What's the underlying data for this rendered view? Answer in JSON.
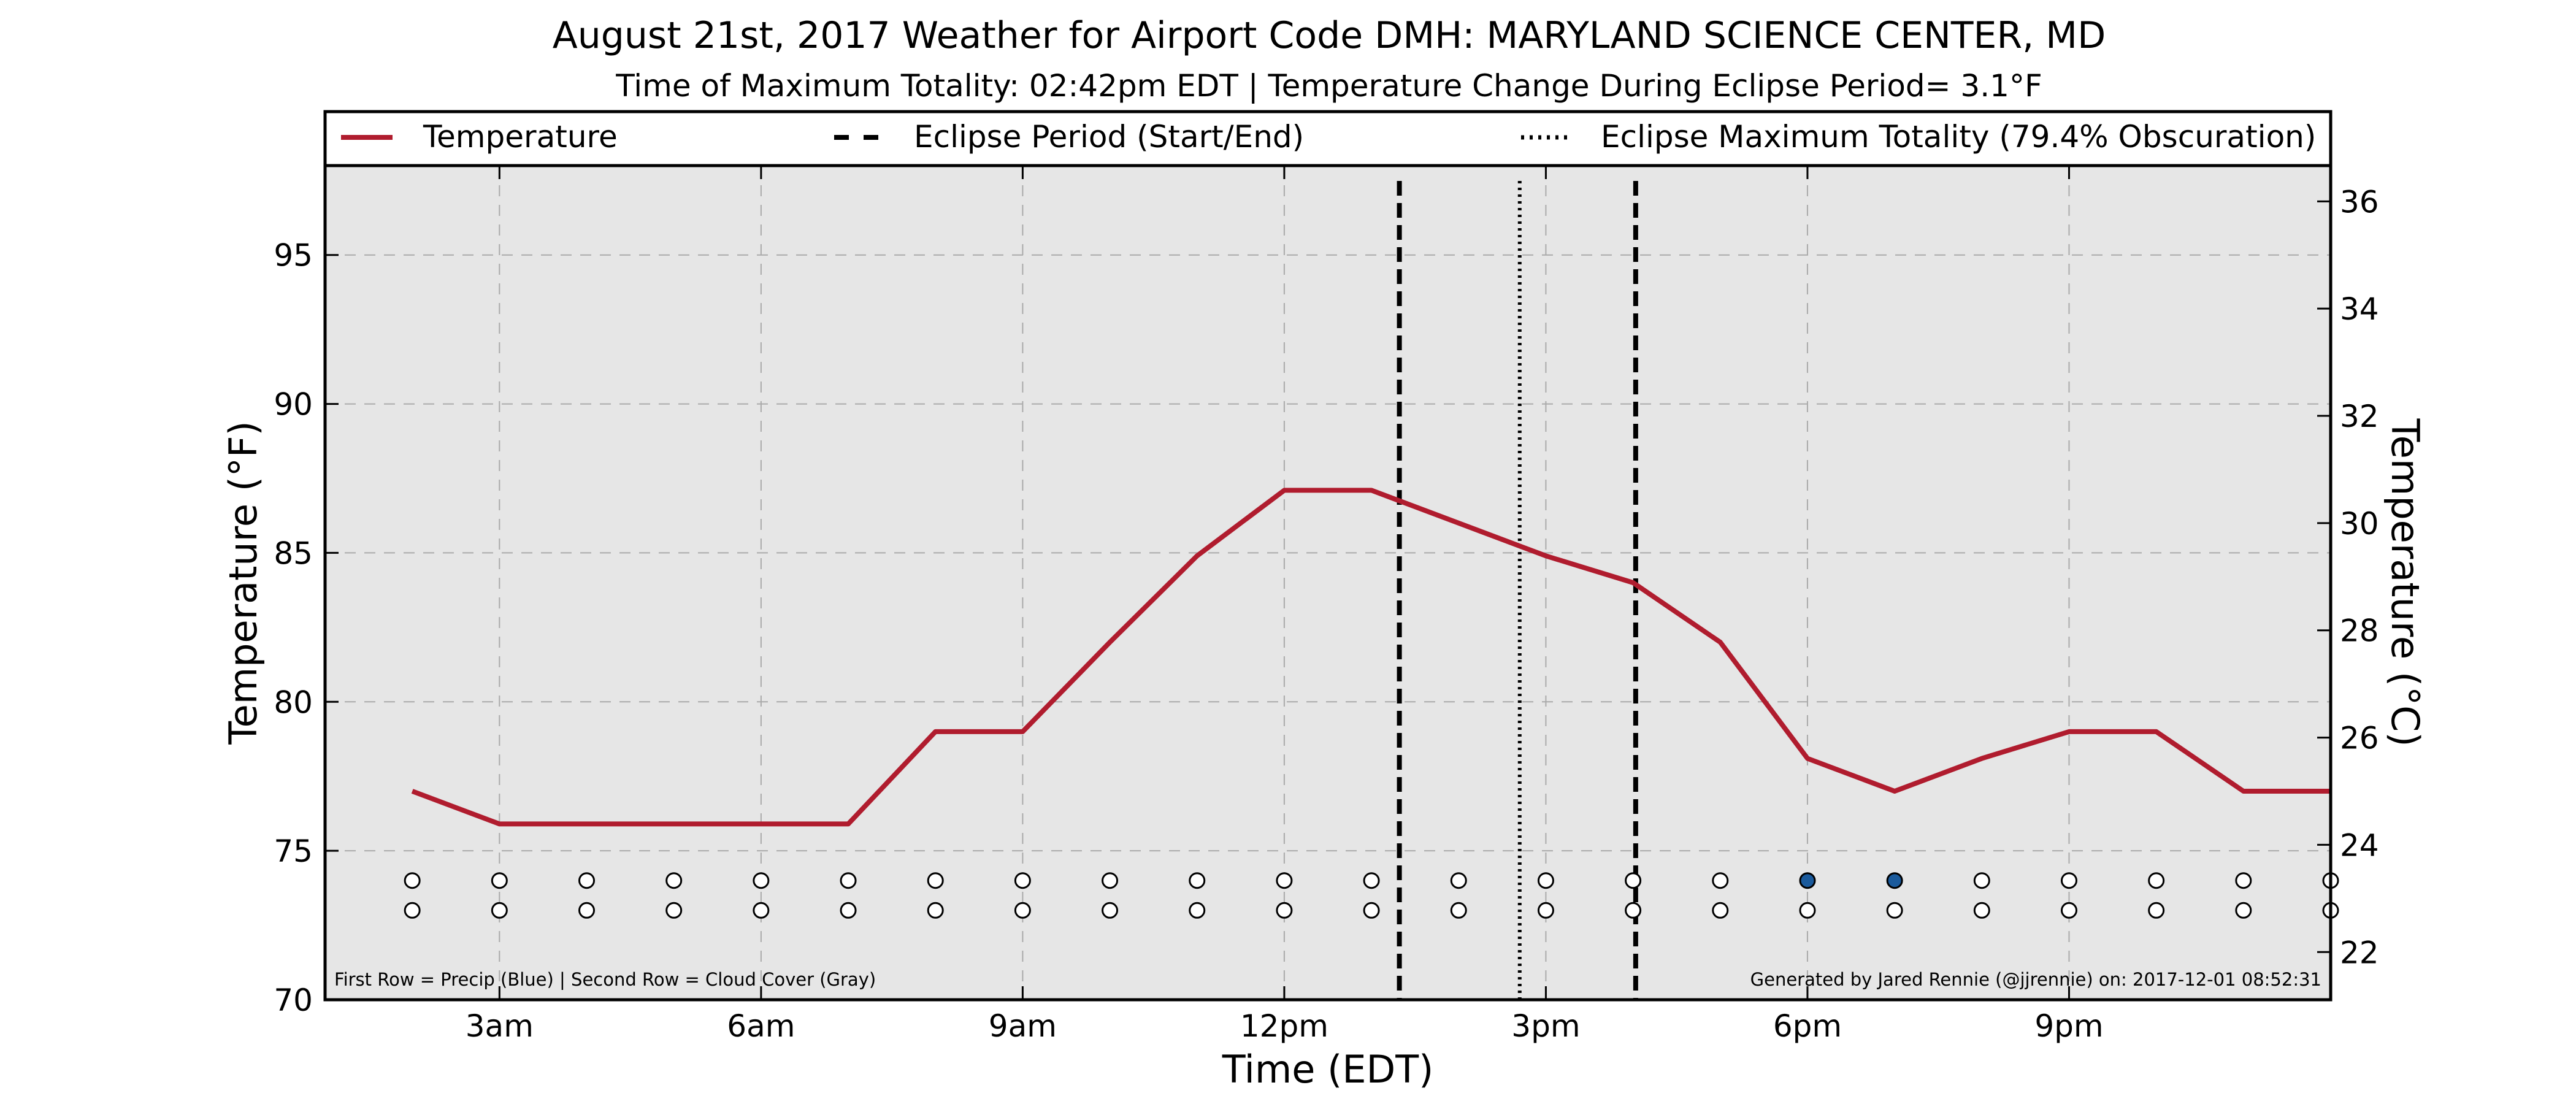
{
  "chart_data": {
    "type": "line",
    "title": "August 21st, 2017 Weather for Airport Code DMH: MARYLAND SCIENCE CENTER, MD",
    "subtitle": "Time of Maximum Totality: 02:42pm EDT | Temperature Change During Eclipse Period= 3.1°F",
    "xlabel": "Time (EDT)",
    "ylabel": "Temperature (°F)",
    "ylabel_right": "Temperature (°C)",
    "xlim": [
      1.0,
      24.0
    ],
    "ylim": [
      70,
      98
    ],
    "ylim_right_c": [
      21.111,
      36.667
    ],
    "x_ticks": [
      {
        "x": 3,
        "label": "3am"
      },
      {
        "x": 6,
        "label": "6am"
      },
      {
        "x": 9,
        "label": "9am"
      },
      {
        "x": 12,
        "label": "12pm"
      },
      {
        "x": 15,
        "label": "3pm"
      },
      {
        "x": 18,
        "label": "6pm"
      },
      {
        "x": 21,
        "label": "9pm"
      }
    ],
    "y_ticks": [
      70,
      75,
      80,
      85,
      90,
      95
    ],
    "y_ticks_right": [
      22,
      24,
      26,
      28,
      30,
      32,
      34,
      36
    ],
    "grid": true,
    "legend_position": "top",
    "legend": [
      {
        "label": "Temperature",
        "style": "solid",
        "color": "#b01c2e"
      },
      {
        "label": "Eclipse Period (Start/End)",
        "style": "dashed",
        "color": "#000000"
      },
      {
        "label": "Eclipse Maximum Totality (79.4% Obscuration)",
        "style": "dotted",
        "color": "#000000"
      }
    ],
    "series": [
      {
        "name": "Temperature",
        "x": [
          2,
          3,
          4,
          5,
          6,
          7,
          8,
          9,
          10,
          11,
          12,
          13,
          14,
          15,
          16,
          17,
          18,
          19,
          20,
          21,
          22,
          23,
          24
        ],
        "values": [
          77.0,
          75.9,
          75.9,
          75.9,
          75.9,
          75.9,
          79.0,
          79.0,
          82.0,
          84.9,
          87.1,
          87.1,
          86.0,
          84.9,
          84.0,
          82.0,
          78.1,
          77.0,
          78.1,
          79.0,
          79.0,
          77.0,
          77.0
        ]
      }
    ],
    "eclipse_start_x": 13.32,
    "eclipse_end_x": 16.03,
    "max_totality_x": 14.7,
    "indicator_rows": {
      "x": [
        2,
        3,
        4,
        5,
        6,
        7,
        8,
        9,
        10,
        11,
        12,
        13,
        14,
        15,
        16,
        17,
        18,
        19,
        20,
        21,
        22,
        23,
        24
      ],
      "row1_y": 74,
      "row2_y": 73,
      "precip_flags": [
        0,
        0,
        0,
        0,
        0,
        0,
        0,
        0,
        0,
        0,
        0,
        0,
        0,
        0,
        0,
        0,
        1,
        1,
        0,
        0,
        0,
        0,
        0
      ],
      "precip_color": "#1a5a9c"
    },
    "footnote_left": "First Row = Precip (Blue) | Second Row = Cloud Cover (Gray)",
    "footnote_right": "Generated by Jared Rennie (@jjrennie) on: 2017-12-01 08:52:31",
    "colors": {
      "plot_bg": "#e6e6e6",
      "temperature": "#b01c2e",
      "grid": "#aaaaaa"
    }
  }
}
